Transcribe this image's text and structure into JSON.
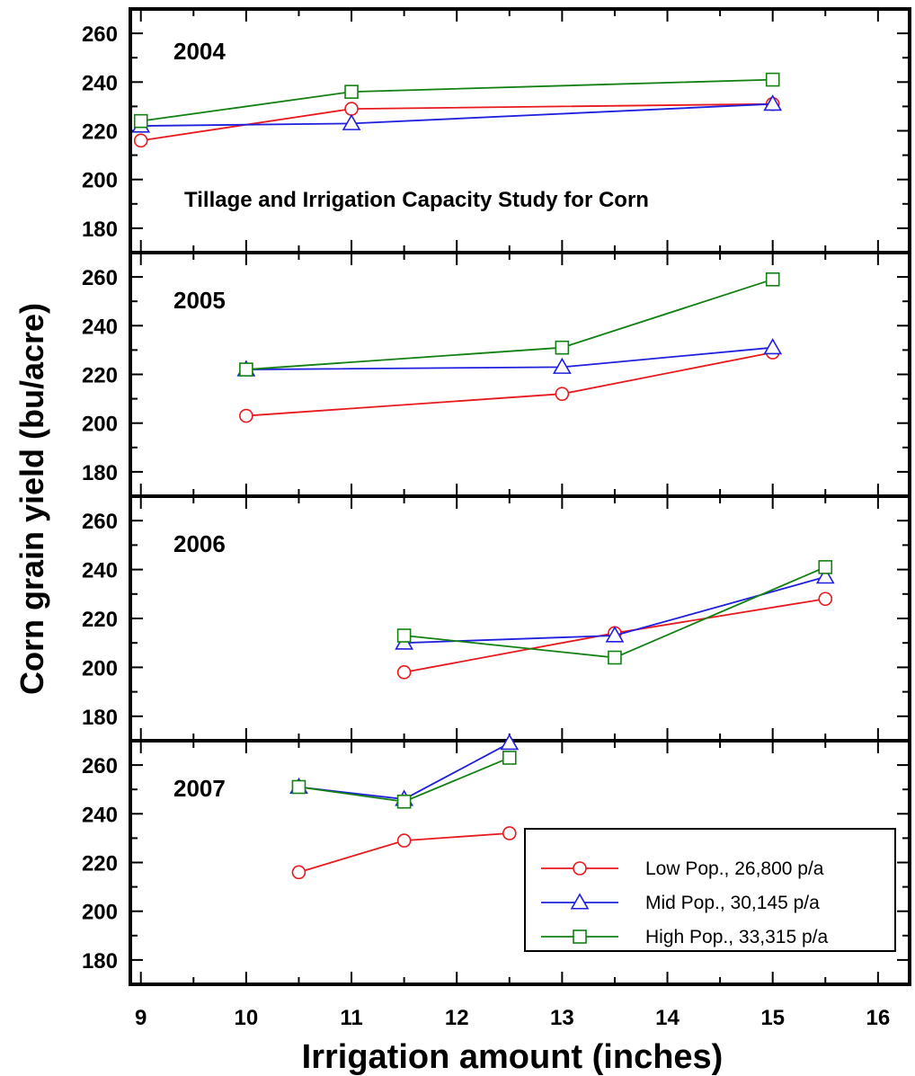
{
  "chart_data": {
    "type": "line",
    "title": "Tillage and Irrigation Capacity Study for Corn",
    "xlabel": "Irrigation amount (inches)",
    "ylabel": "Corn grain yield (bu/acre)",
    "xlim": [
      8.9,
      16.3
    ],
    "ylim": [
      170,
      270
    ],
    "x_ticks": [
      "9",
      "10",
      "11",
      "12",
      "13",
      "14",
      "15",
      "16"
    ],
    "y_ticks": [
      "180",
      "200",
      "220",
      "240",
      "260"
    ],
    "grid": false,
    "legend_position": "bottom-right of 2007 panel",
    "legend": [
      {
        "label": "Low Pop., 26,800 p/a",
        "color": "#e8191d",
        "marker": "circle"
      },
      {
        "label": "Mid Pop., 30,145 p/a",
        "color": "#1f1fdf",
        "marker": "triangle"
      },
      {
        "label": "High Pop., 33,315 p/a",
        "color": "#128012",
        "marker": "square"
      }
    ],
    "panels": [
      {
        "year": "2004",
        "series": [
          {
            "name": "Low Pop., 26,800 p/a",
            "x": [
              9,
              11,
              15
            ],
            "y": [
              216,
              229,
              231
            ]
          },
          {
            "name": "Mid Pop., 30,145 p/a",
            "x": [
              9,
              11,
              15
            ],
            "y": [
              222,
              223,
              231
            ]
          },
          {
            "name": "High Pop., 33,315 p/a",
            "x": [
              9,
              11,
              15
            ],
            "y": [
              224,
              236,
              241
            ]
          }
        ]
      },
      {
        "year": "2005",
        "series": [
          {
            "name": "Low Pop., 26,800 p/a",
            "x": [
              10,
              13,
              15
            ],
            "y": [
              203,
              212,
              229
            ]
          },
          {
            "name": "Mid Pop., 30,145 p/a",
            "x": [
              10,
              13,
              15
            ],
            "y": [
              222,
              223,
              231
            ]
          },
          {
            "name": "High Pop., 33,315 p/a",
            "x": [
              10,
              13,
              15
            ],
            "y": [
              222,
              231,
              259
            ]
          }
        ]
      },
      {
        "year": "2006",
        "series": [
          {
            "name": "Low Pop., 26,800 p/a",
            "x": [
              11.5,
              13.5,
              15.5
            ],
            "y": [
              198,
              214,
              228
            ]
          },
          {
            "name": "Mid Pop., 30,145 p/a",
            "x": [
              11.5,
              13.5,
              15.5
            ],
            "y": [
              210,
              213,
              237
            ]
          },
          {
            "name": "High Pop., 33,315 p/a",
            "x": [
              11.5,
              13.5,
              15.5
            ],
            "y": [
              213,
              204,
              241
            ]
          }
        ]
      },
      {
        "year": "2007",
        "series": [
          {
            "name": "Low Pop., 26,800 p/a",
            "x": [
              10.5,
              11.5,
              12.5
            ],
            "y": [
              216,
              229,
              232
            ]
          },
          {
            "name": "Mid Pop., 30,145 p/a",
            "x": [
              10.5,
              11.5,
              12.5
            ],
            "y": [
              251,
              246,
              269
            ]
          },
          {
            "name": "High Pop., 33,315 p/a",
            "x": [
              10.5,
              11.5,
              12.5
            ],
            "y": [
              251,
              245,
              263
            ]
          }
        ]
      }
    ]
  }
}
